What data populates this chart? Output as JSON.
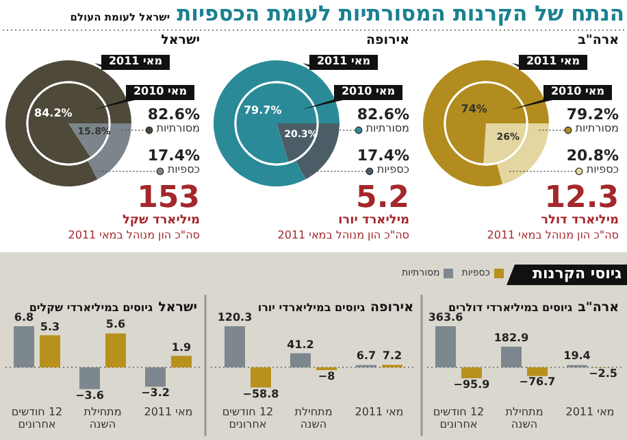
{
  "chart_data": [
    {
      "type": "other",
      "title": "הנתח של הקרנות המסורתיות לעומת הכספיות",
      "subtitle": "ישראל לעומת העולם"
    },
    {
      "type": "donut",
      "title": "ארה\"ב",
      "categories": [
        "מסורתיות",
        "כספיות"
      ],
      "colors": [
        "#b28c1e",
        "#e3d6a0"
      ],
      "series": [
        {
          "name": "מאי 2010",
          "values": [
            74,
            26
          ],
          "value_labels": [
            "74%",
            "26%"
          ]
        },
        {
          "name": "מאי 2011",
          "values": [
            79.2,
            20.8
          ],
          "value_labels": [
            "79.2%",
            "20.8%"
          ]
        }
      ],
      "legend": "right",
      "annotations": [
        "12.3",
        "מיליארד דולר",
        "סה\"כ הון מנוהל במאי 2011"
      ]
    },
    {
      "type": "donut",
      "title": "אירופה",
      "categories": [
        "מסורתיות",
        "כספיות"
      ],
      "colors": [
        "#2b8a98",
        "#4b5d66"
      ],
      "series": [
        {
          "name": "מאי 2010",
          "values": [
            79.7,
            20.3
          ],
          "value_labels": [
            "79.7%",
            "20.3%"
          ]
        },
        {
          "name": "מאי 2011",
          "values": [
            82.6,
            17.4
          ],
          "value_labels": [
            "82.6%",
            "17.4%"
          ]
        }
      ],
      "legend": "right",
      "annotations": [
        "5.2",
        "מיליארד יורו",
        "סה\"כ הון מנוהל במאי 2011"
      ]
    },
    {
      "type": "donut",
      "title": "ישראל",
      "categories": [
        "מסורתיות",
        "כספיות"
      ],
      "colors": [
        "#4e4939",
        "#7c858b"
      ],
      "series": [
        {
          "name": "מאי 2010",
          "values": [
            84.2,
            15.8
          ],
          "value_labels": [
            "84.2%",
            "15.8%"
          ]
        },
        {
          "name": "מאי 2011",
          "values": [
            82.6,
            17.4
          ],
          "value_labels": [
            "82.6%",
            "17.4%"
          ]
        }
      ],
      "legend": "right",
      "annotations": [
        "153",
        "מיליארד שקל",
        "סה\"כ הון מנוהל במאי 2011"
      ]
    },
    {
      "type": "other",
      "title": "גיוסי הקרנות"
    },
    {
      "type": "bar",
      "title": "ארה\"ב",
      "subtitle": "גיוסים במיליארדי דולרים",
      "categories": [
        "12 חודשים אחרונים",
        "מתחילת השנה",
        "מאי 2011"
      ],
      "series": [
        {
          "name": "מסורתיות",
          "color": "#7d878e",
          "values": [
            363.6,
            182.9,
            19.4
          ],
          "value_labels": [
            "363.6",
            "182.9",
            "19.4"
          ]
        },
        {
          "name": "כספיות",
          "color": "#b8901c",
          "values": [
            -95.9,
            -76.7,
            -2.5
          ],
          "value_labels": [
            "−95.9",
            "−76.7",
            "−2.5"
          ]
        }
      ],
      "legend": "top",
      "ref_lines": [
        {
          "axis": "y",
          "value": 0,
          "line_style": "dotted",
          "color": "#666666"
        }
      ]
    },
    {
      "type": "bar",
      "title": "אירופה",
      "subtitle": "גיוסים במיליארדי יורו",
      "categories": [
        "12 חודשים אחרונים",
        "מתחילת השנה",
        "מאי 2011"
      ],
      "series": [
        {
          "color": "#7d878e",
          "values": [
            120.3,
            41.2,
            6.7
          ],
          "value_labels": [
            "120.3",
            "41.2",
            "6.7"
          ]
        },
        {
          "color": "#b8901c",
          "values": [
            -58.8,
            -8,
            7.2
          ],
          "value_labels": [
            "−58.8",
            "−8",
            "7.2"
          ]
        }
      ],
      "ref_lines": [
        {
          "axis": "y",
          "value": 0,
          "line_style": "dotted",
          "color": "#666666"
        }
      ]
    },
    {
      "type": "bar",
      "title": "ישראל",
      "subtitle": "גיוסים במיליארדי שקלים",
      "categories": [
        "12 חודשים אחרונים",
        "מתחילת השנה",
        "מאי 2011"
      ],
      "series": [
        {
          "color": "#7d878e",
          "values": [
            6.8,
            -3.6,
            -3.2
          ],
          "value_labels": [
            "6.8",
            "−3.6",
            "−3.2"
          ]
        },
        {
          "color": "#b8901c",
          "values": [
            5.3,
            5.6,
            1.9
          ],
          "value_labels": [
            "5.3",
            "5.6",
            "1.9"
          ]
        }
      ],
      "ref_lines": [
        {
          "axis": "y",
          "value": 0,
          "line_style": "dotted",
          "color": "#666666"
        }
      ]
    }
  ]
}
